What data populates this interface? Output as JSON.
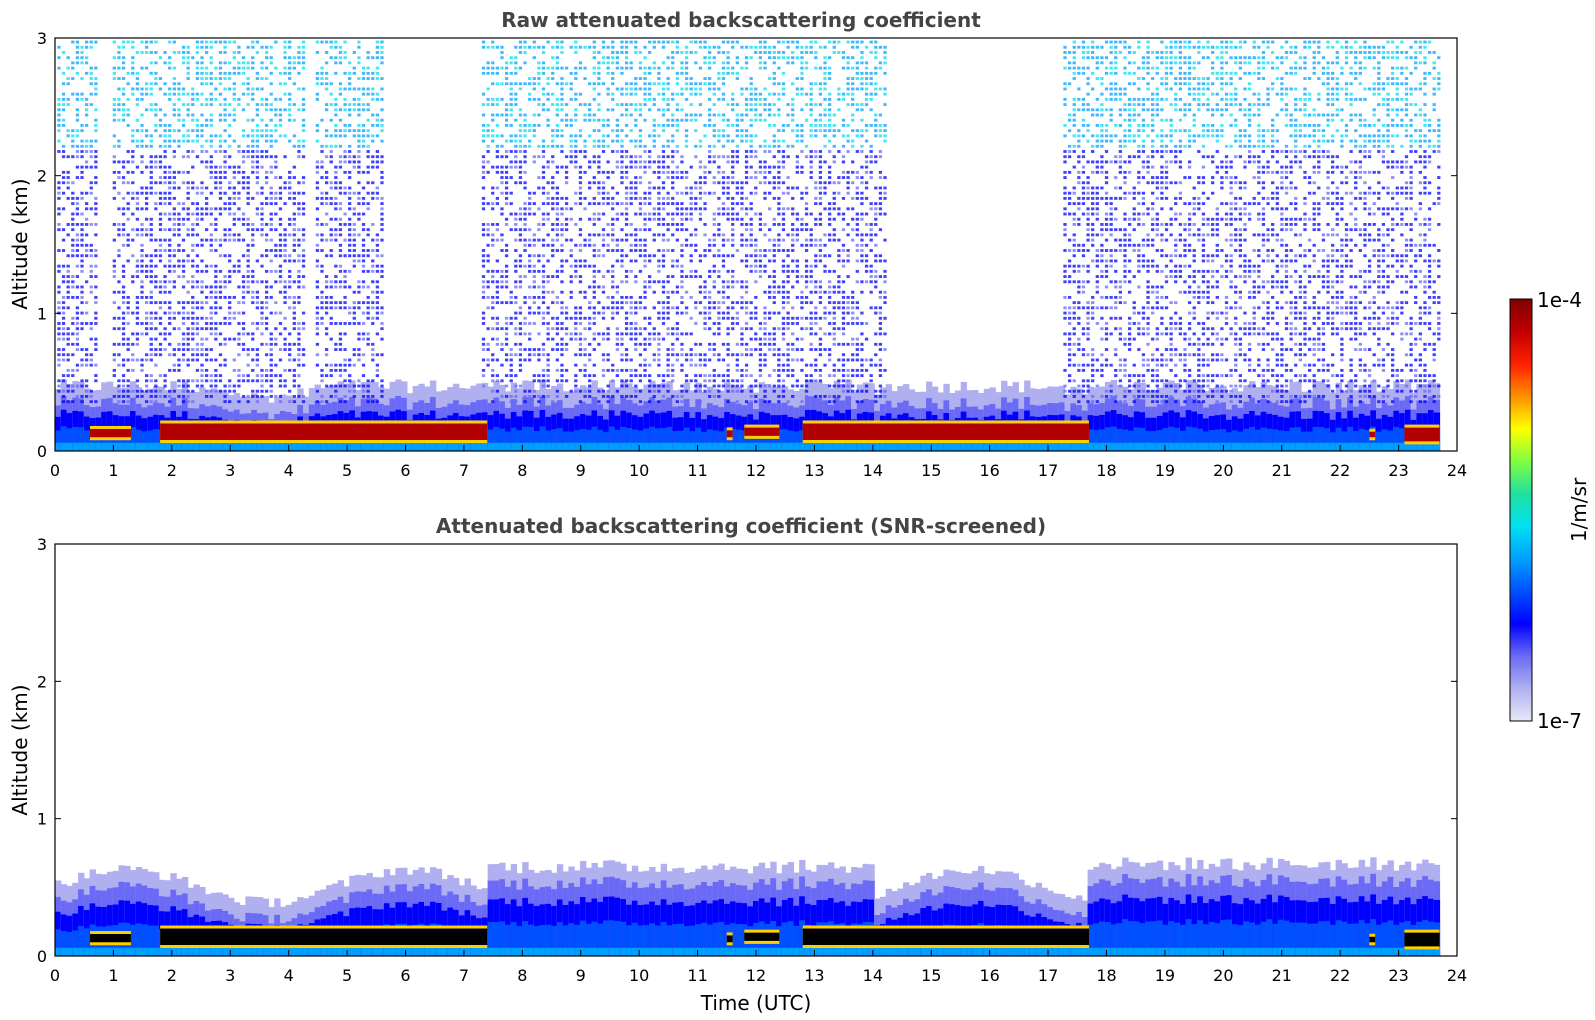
{
  "chart_data": [
    {
      "type": "heatmap",
      "title": "Raw attenuated backscattering coefficient",
      "xlabel": "",
      "ylabel": "Altitude (km)",
      "xlim": [
        0,
        24
      ],
      "ylim": [
        0,
        3
      ],
      "xticks": [
        "0",
        "1",
        "2",
        "3",
        "4",
        "5",
        "6",
        "7",
        "8",
        "9",
        "10",
        "11",
        "12",
        "13",
        "14",
        "15",
        "16",
        "17",
        "18",
        "19",
        "20",
        "21",
        "22",
        "23",
        "24"
      ],
      "yticks": [
        "0",
        "1",
        "2",
        "3"
      ],
      "cloud_layers": [
        {
          "start": 0.6,
          "end": 1.3,
          "base_km": 0.1,
          "top_km": 0.16
        },
        {
          "start": 1.8,
          "end": 7.4,
          "base_km": 0.08,
          "top_km": 0.2
        },
        {
          "start": 11.5,
          "end": 11.6,
          "base_km": 0.1,
          "top_km": 0.15
        },
        {
          "start": 11.8,
          "end": 12.4,
          "base_km": 0.11,
          "top_km": 0.17
        },
        {
          "start": 12.8,
          "end": 17.7,
          "base_km": 0.08,
          "top_km": 0.2
        },
        {
          "start": 22.5,
          "end": 22.6,
          "base_km": 0.1,
          "top_km": 0.14
        },
        {
          "start": 23.1,
          "end": 23.7,
          "base_km": 0.07,
          "top_km": 0.17
        }
      ]
    },
    {
      "type": "heatmap",
      "title": "Attenuated backscattering coefficient (SNR-screened)",
      "xlabel": "Time (UTC)",
      "ylabel": "Altitude (km)",
      "xlim": [
        0,
        24
      ],
      "ylim": [
        0,
        3
      ],
      "xticks": [
        "0",
        "1",
        "2",
        "3",
        "4",
        "5",
        "6",
        "7",
        "8",
        "9",
        "10",
        "11",
        "12",
        "13",
        "14",
        "15",
        "16",
        "17",
        "18",
        "19",
        "20",
        "21",
        "22",
        "23",
        "24"
      ],
      "yticks": [
        "0",
        "1",
        "2",
        "3"
      ],
      "cloud_layers": [
        {
          "start": 0.6,
          "end": 1.3,
          "base_km": 0.1,
          "top_km": 0.16
        },
        {
          "start": 1.8,
          "end": 7.4,
          "base_km": 0.08,
          "top_km": 0.2
        },
        {
          "start": 11.5,
          "end": 11.6,
          "base_km": 0.1,
          "top_km": 0.15
        },
        {
          "start": 11.8,
          "end": 12.4,
          "base_km": 0.11,
          "top_km": 0.17
        },
        {
          "start": 12.8,
          "end": 17.7,
          "base_km": 0.08,
          "top_km": 0.2
        },
        {
          "start": 22.5,
          "end": 22.6,
          "base_km": 0.1,
          "top_km": 0.14
        },
        {
          "start": 23.1,
          "end": 23.7,
          "base_km": 0.07,
          "top_km": 0.17
        }
      ]
    }
  ],
  "colorbar": {
    "label": "1/m/sr",
    "max_label": "1e-4",
    "min_label": "1e-7",
    "scale": "log",
    "colormap": [
      "#e8e8f8",
      "#b0b0f0",
      "#6a6af6",
      "#0000ff",
      "#0050ff",
      "#00a0ff",
      "#00e0f0",
      "#20e0a0",
      "#80ff40",
      "#ffff00",
      "#ff9000",
      "#ff2000",
      "#c00000",
      "#800000"
    ]
  },
  "colors": {
    "axes": "#000000",
    "title": "#444444",
    "saturated": "#000000"
  }
}
